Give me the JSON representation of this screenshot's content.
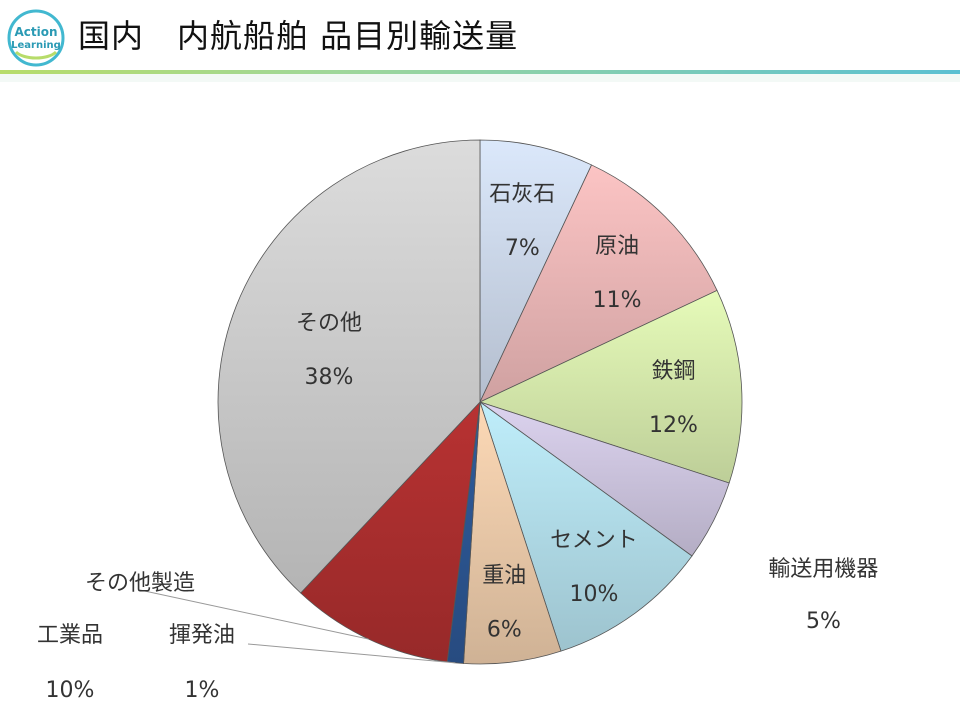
{
  "header": {
    "logo_text_top": "Action",
    "logo_text_bottom": "Learning",
    "title": "国内　内航船舶 品目別輸送量"
  },
  "colors": {
    "accent": "#42b8d0",
    "rule_green": "#b7dc6a",
    "rule_teal": "#5bc0d2"
  },
  "chart_data": {
    "type": "pie",
    "start_angle_deg": 0,
    "direction": "clockwise",
    "slices": [
      {
        "label": "石灰石",
        "pct_label": "7%",
        "value": 7,
        "color": "#dbe8fb"
      },
      {
        "label": "原油",
        "pct_label": "11%",
        "value": 11,
        "color": "#fcc4c4"
      },
      {
        "label": "鉄鋼",
        "pct_label": "12%",
        "value": 12,
        "color": "#e6fbb9"
      },
      {
        "label": "輸送用機器",
        "pct_label": "5%",
        "value": 5,
        "color": "#dcd3ef"
      },
      {
        "label": "セメント",
        "pct_label": "10%",
        "value": 10,
        "color": "#bfeefb"
      },
      {
        "label": "重油",
        "pct_label": "6%",
        "value": 6,
        "color": "#fdd9b6"
      },
      {
        "label": "揮発油",
        "pct_label": "1%",
        "value": 1,
        "color": "#2f5c9c"
      },
      {
        "label": "その他製造工業品",
        "label_line1": "その他製造",
        "label_line2": "工業品",
        "pct_label": "10%",
        "value": 10,
        "color": "#b83232"
      },
      {
        "label": "その他",
        "pct_label": "38%",
        "value": 38,
        "color": "#dcdcdc"
      }
    ]
  }
}
